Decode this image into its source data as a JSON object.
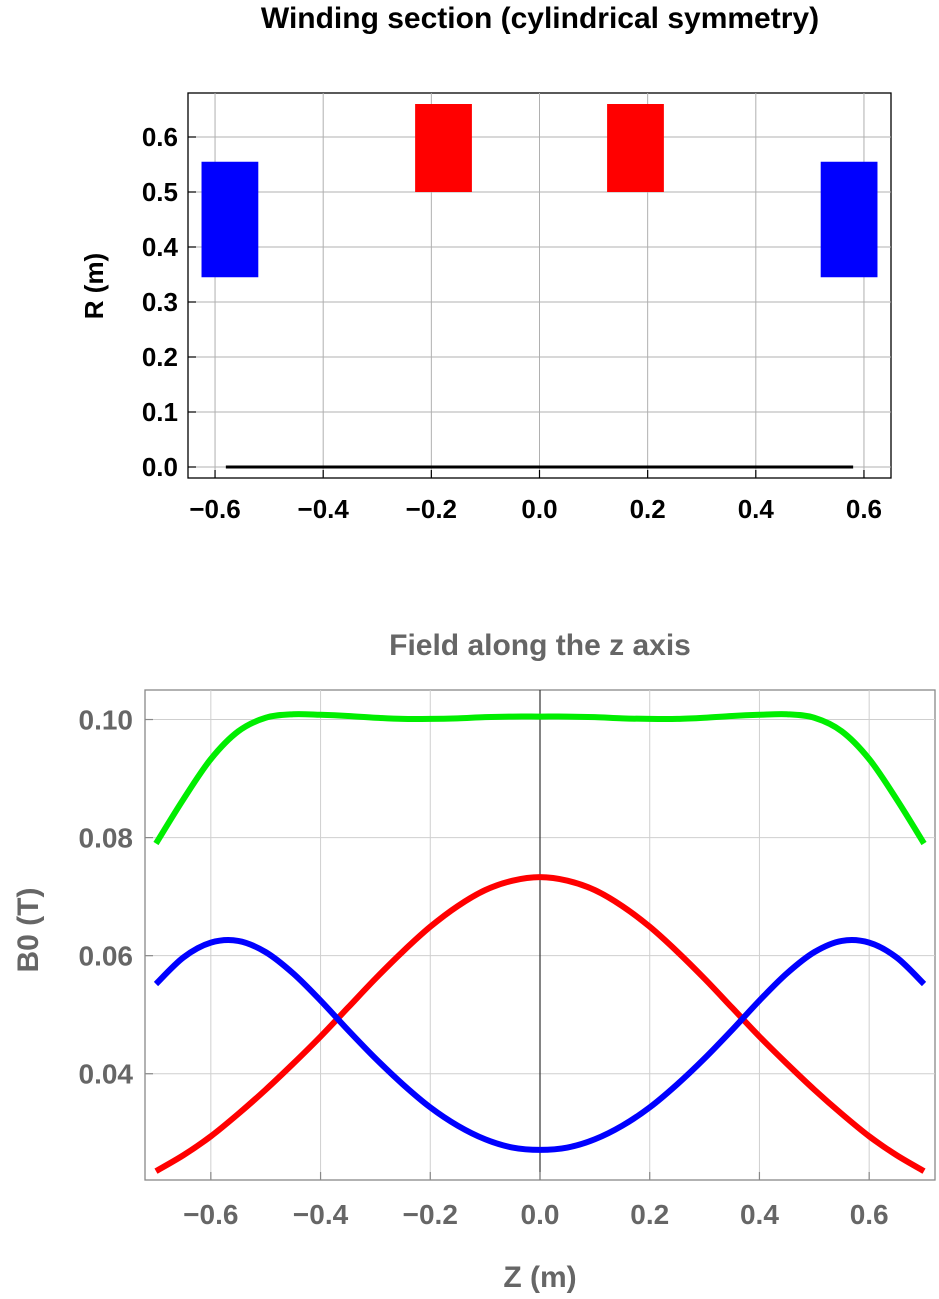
{
  "chart_data": [
    {
      "type": "rectangles",
      "title": "Winding section (cylindrical symmetry)",
      "xlabel": "",
      "ylabel": "R (m)",
      "xlim": [
        -0.65,
        0.65
      ],
      "ylim": [
        -0.02,
        0.68
      ],
      "xticks": [
        "-0.6",
        "-0.4",
        "-0.2",
        "0.0",
        "0.2",
        "0.4",
        "0.6"
      ],
      "xtick_values": [
        -0.6,
        -0.4,
        -0.2,
        0.0,
        0.2,
        0.4,
        0.6
      ],
      "yticks": [
        "0.0",
        "0.1",
        "0.2",
        "0.3",
        "0.4",
        "0.5",
        "0.6"
      ],
      "ytick_values": [
        0.0,
        0.1,
        0.2,
        0.3,
        0.4,
        0.5,
        0.6
      ],
      "grid": true,
      "rects": [
        {
          "z0": -0.625,
          "z1": -0.52,
          "r0": 0.345,
          "r1": 0.555,
          "color": "#0000ff"
        },
        {
          "z0": -0.23,
          "z1": -0.125,
          "r0": 0.5,
          "r1": 0.66,
          "color": "#ff0000"
        },
        {
          "z0": 0.125,
          "z1": 0.23,
          "r0": 0.5,
          "r1": 0.66,
          "color": "#ff0000"
        },
        {
          "z0": 0.52,
          "z1": 0.625,
          "r0": 0.345,
          "r1": 0.555,
          "color": "#0000ff"
        }
      ],
      "axis_line": {
        "z0": -0.58,
        "z1": 0.58,
        "r": 0.0,
        "color": "#000000"
      }
    },
    {
      "type": "line",
      "title": "Field along the z axis",
      "xlabel": "Z (m)",
      "ylabel": "B0 (T)",
      "xlim": [
        -0.72,
        0.72
      ],
      "ylim": [
        0.022,
        0.105
      ],
      "xticks": [
        "-0.6",
        "-0.4",
        "-0.2",
        "0.0",
        "0.2",
        "0.4",
        "0.6"
      ],
      "xtick_values": [
        -0.6,
        -0.4,
        -0.2,
        0.0,
        0.2,
        0.4,
        0.6
      ],
      "yticks": [
        "0.04",
        "0.06",
        "0.08",
        "0.10"
      ],
      "ytick_values": [
        0.04,
        0.06,
        0.08,
        0.1
      ],
      "grid": true,
      "series": [
        {
          "color": "#00ee00",
          "x": [
            -0.7,
            -0.65,
            -0.6,
            -0.55,
            -0.5,
            -0.45,
            -0.4,
            -0.35,
            -0.3,
            -0.25,
            -0.2,
            -0.15,
            -0.1,
            -0.05,
            0.0,
            0.05,
            0.1,
            0.15,
            0.2,
            0.25,
            0.3,
            0.35,
            0.4,
            0.45,
            0.5,
            0.55,
            0.6,
            0.65,
            0.7
          ],
          "y": [
            0.079,
            0.0865,
            0.0933,
            0.098,
            0.1003,
            0.1009,
            0.1008,
            0.1006,
            0.1003,
            0.1001,
            0.1001,
            0.1002,
            0.1004,
            0.1005,
            0.1005,
            0.1005,
            0.1004,
            0.1002,
            0.1001,
            0.1001,
            0.1003,
            0.1006,
            0.1008,
            0.1009,
            0.1003,
            0.098,
            0.0933,
            0.0865,
            0.079
          ]
        },
        {
          "color": "#ff0000",
          "x": [
            -0.7,
            -0.65,
            -0.6,
            -0.55,
            -0.5,
            -0.45,
            -0.4,
            -0.35,
            -0.3,
            -0.25,
            -0.2,
            -0.15,
            -0.1,
            -0.05,
            0.0,
            0.05,
            0.1,
            0.15,
            0.2,
            0.25,
            0.3,
            0.35,
            0.4,
            0.45,
            0.5,
            0.55,
            0.6,
            0.65,
            0.7
          ],
          "y": [
            0.0235,
            0.0262,
            0.0294,
            0.0332,
            0.0373,
            0.0417,
            0.0463,
            0.0512,
            0.0561,
            0.0607,
            0.0649,
            0.0684,
            0.0711,
            0.0727,
            0.0733,
            0.0727,
            0.0711,
            0.0684,
            0.0649,
            0.0607,
            0.0561,
            0.0512,
            0.0463,
            0.0417,
            0.0373,
            0.0332,
            0.0294,
            0.0262,
            0.0235
          ]
        },
        {
          "color": "#0000ff",
          "x": [
            -0.7,
            -0.65,
            -0.6,
            -0.55,
            -0.5,
            -0.45,
            -0.4,
            -0.35,
            -0.3,
            -0.25,
            -0.2,
            -0.15,
            -0.1,
            -0.05,
            0.0,
            0.05,
            0.1,
            0.15,
            0.2,
            0.25,
            0.3,
            0.35,
            0.4,
            0.45,
            0.5,
            0.55,
            0.6,
            0.65,
            0.7
          ],
          "y": [
            0.0552,
            0.0597,
            0.0622,
            0.0625,
            0.0606,
            0.057,
            0.0524,
            0.0474,
            0.0426,
            0.0382,
            0.0343,
            0.0312,
            0.0289,
            0.0275,
            0.0271,
            0.0275,
            0.0289,
            0.0312,
            0.0343,
            0.0382,
            0.0426,
            0.0474,
            0.0524,
            0.057,
            0.0606,
            0.0625,
            0.0622,
            0.0597,
            0.0552
          ]
        }
      ]
    }
  ]
}
